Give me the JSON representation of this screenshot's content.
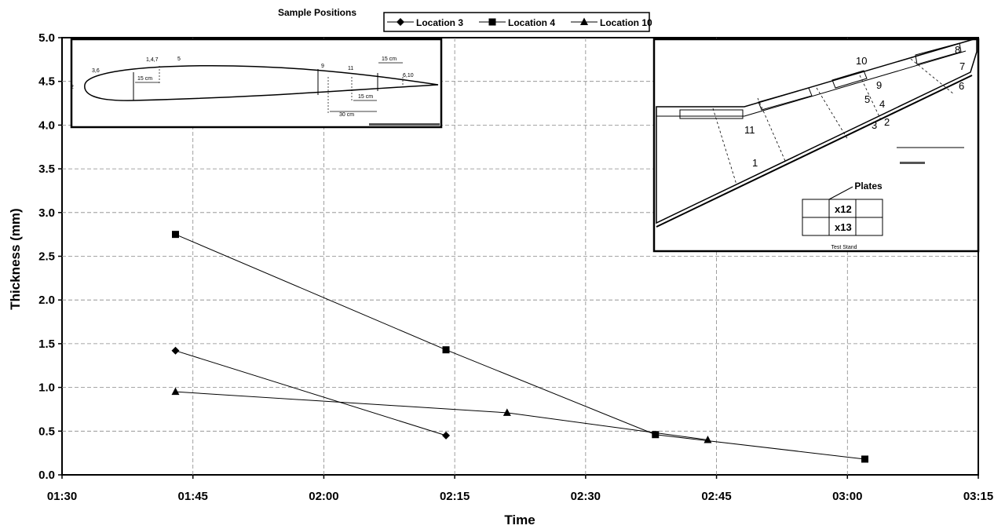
{
  "chart_data": {
    "type": "line",
    "title": "",
    "xlabel": "Time",
    "ylabel": "Thickness (mm)",
    "xlim": [
      "01:30",
      "03:15"
    ],
    "ylim": [
      0,
      5
    ],
    "x_ticks": [
      "01:30",
      "01:45",
      "02:00",
      "02:15",
      "02:30",
      "02:45",
      "03:00",
      "03:15"
    ],
    "y_ticks": [
      "0.0",
      "0.5",
      "1.0",
      "1.5",
      "2.0",
      "2.5",
      "3.0",
      "3.5",
      "4.0",
      "4.5",
      "5.0"
    ],
    "grid": true,
    "legend_position": "top",
    "series": [
      {
        "name": "Location 3",
        "marker": "diamond",
        "x": [
          "01:43",
          "02:14"
        ],
        "y": [
          1.42,
          0.45
        ]
      },
      {
        "name": "Location 4",
        "marker": "square",
        "x": [
          "01:43",
          "02:14",
          "02:38",
          "03:02"
        ],
        "y": [
          2.75,
          1.43,
          0.46,
          0.18
        ]
      },
      {
        "name": "Location 10",
        "marker": "triangle",
        "x": [
          "01:43",
          "02:21",
          "02:44"
        ],
        "y": [
          0.95,
          0.71,
          0.4
        ]
      }
    ]
  },
  "insets": {
    "sample_positions_label": "Sample Positions",
    "airfoil": {
      "labels": [
        "2",
        "3,6",
        "1,4,7",
        "5",
        "9",
        "11",
        "6,10"
      ],
      "dims": [
        "15 cm",
        "15 cm",
        "15 cm",
        "30 cm"
      ]
    },
    "wing": {
      "labels": [
        "1",
        "2",
        "3",
        "4",
        "5",
        "6",
        "7",
        "8",
        "9",
        "10",
        "11"
      ],
      "plates_label": "Plates",
      "plates": [
        "x12",
        "x13"
      ],
      "stand_label": "Test Stand"
    }
  },
  "colors": {
    "line": "#000000",
    "grid": "#888888",
    "background": "#ffffff"
  }
}
